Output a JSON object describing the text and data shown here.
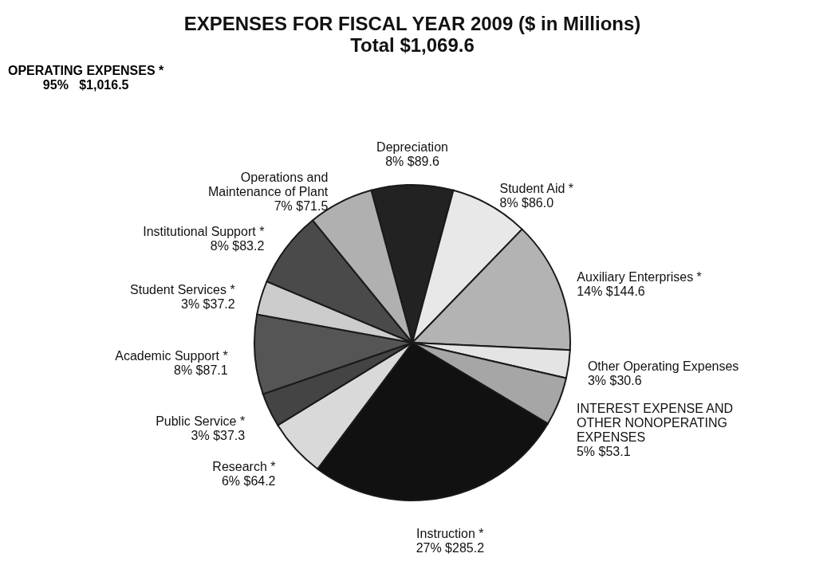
{
  "chart_data": {
    "type": "pie",
    "title": "EXPENSES FOR FISCAL YEAR 2009 ($ in Millions)",
    "subtitle": "Total $1,069.6",
    "annotations": [
      "OPERATING EXPENSES *\n95%   $1,016.5"
    ],
    "categories": [
      "Depreciation",
      "Student Aid *",
      "Auxiliary Enterprises *",
      "Other Operating Expenses",
      "INTEREST EXPENSE AND\nOTHER NONOPERATING\nEXPENSES",
      "Instruction *",
      "Research *",
      "Public Service *",
      "Academic Support *",
      "Student Services *",
      "Institutional Support *",
      "Operations and\nMaintenance of Plant"
    ],
    "values": [
      89.6,
      86.0,
      144.6,
      30.6,
      53.1,
      285.2,
      64.2,
      37.3,
      87.1,
      37.2,
      83.2,
      71.5
    ],
    "value_labels": [
      "8%     $89.6",
      "8%     $86.0",
      "14%     $144.6",
      "3%     $30.6",
      "5%     $53.1",
      "27%     $285.2",
      "6%     $64.2",
      "3%     $37.3",
      "8%     $87.1",
      "3%     $37.2",
      "8%     $83.2",
      "7%     $71.5"
    ],
    "colors": [
      "#222222",
      "#e8e8e8",
      "#b3b3b3",
      "#e4e4e4",
      "#a6a6a6",
      "#111111",
      "#d9d9d9",
      "#444444",
      "#555555",
      "#cccccc",
      "#4a4a4a",
      "#b0b0b0"
    ]
  }
}
